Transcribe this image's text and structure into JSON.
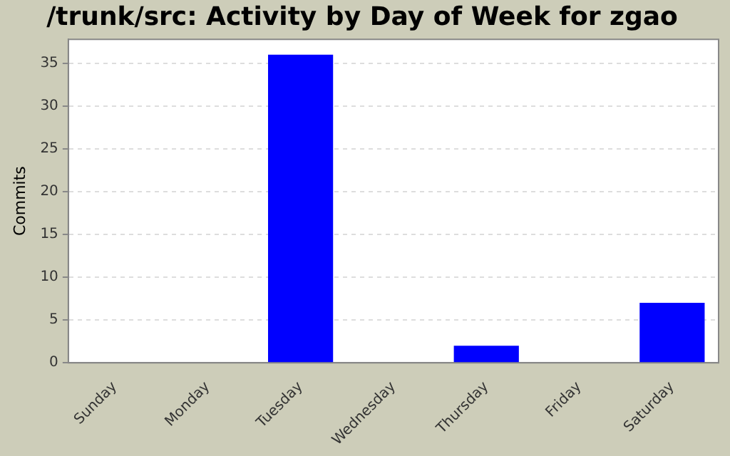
{
  "chart_data": {
    "type": "bar",
    "title": "/trunk/src: Activity by Day of Week for zgao",
    "ylabel": "Commits",
    "categories": [
      "Sunday",
      "Monday",
      "Tuesday",
      "Wednesday",
      "Thursday",
      "Friday",
      "Saturday"
    ],
    "values": [
      0,
      0,
      36,
      0,
      2,
      0,
      7
    ],
    "color": "#0000ff",
    "ylim": [
      0,
      37.8
    ],
    "yticks": [
      0,
      5,
      10,
      15,
      20,
      25,
      30,
      35
    ],
    "grid": "y",
    "legend": false
  }
}
